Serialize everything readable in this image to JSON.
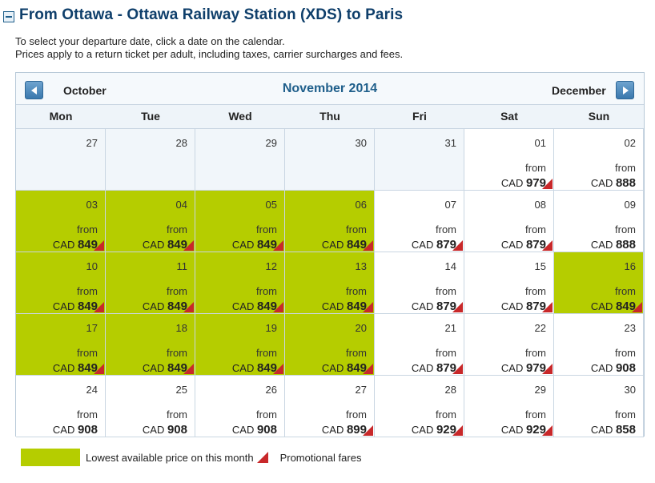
{
  "header": {
    "title": "From Ottawa - Ottawa Railway Station (XDS) to Paris",
    "collapse_icon": "minus-icon"
  },
  "intro": {
    "line1": "To select your departure date, click a date on the calendar.",
    "line2": "Prices apply to a return ticket per adult, including taxes, carrier surcharges and fees."
  },
  "nav": {
    "prev_label": "October",
    "next_label": "December",
    "month_title": "November 2014"
  },
  "weekdays": [
    "Mon",
    "Tue",
    "Wed",
    "Thu",
    "Fri",
    "Sat",
    "Sun"
  ],
  "cells": [
    {
      "day": "27",
      "past": true
    },
    {
      "day": "28",
      "past": true
    },
    {
      "day": "29",
      "past": true
    },
    {
      "day": "30",
      "past": true
    },
    {
      "day": "31",
      "past": true
    },
    {
      "day": "01",
      "from": "from",
      "currency": "CAD",
      "price": "979",
      "low": false,
      "promo": true
    },
    {
      "day": "02",
      "from": "from",
      "currency": "CAD",
      "price": "888",
      "low": false,
      "promo": false
    },
    {
      "day": "03",
      "from": "from",
      "currency": "CAD",
      "price": "849",
      "low": true,
      "promo": true
    },
    {
      "day": "04",
      "from": "from",
      "currency": "CAD",
      "price": "849",
      "low": true,
      "promo": true
    },
    {
      "day": "05",
      "from": "from",
      "currency": "CAD",
      "price": "849",
      "low": true,
      "promo": true
    },
    {
      "day": "06",
      "from": "from",
      "currency": "CAD",
      "price": "849",
      "low": true,
      "promo": true
    },
    {
      "day": "07",
      "from": "from",
      "currency": "CAD",
      "price": "879",
      "low": false,
      "promo": true
    },
    {
      "day": "08",
      "from": "from",
      "currency": "CAD",
      "price": "879",
      "low": false,
      "promo": true
    },
    {
      "day": "09",
      "from": "from",
      "currency": "CAD",
      "price": "888",
      "low": false,
      "promo": false
    },
    {
      "day": "10",
      "from": "from",
      "currency": "CAD",
      "price": "849",
      "low": true,
      "promo": true
    },
    {
      "day": "11",
      "from": "from",
      "currency": "CAD",
      "price": "849",
      "low": true,
      "promo": true
    },
    {
      "day": "12",
      "from": "from",
      "currency": "CAD",
      "price": "849",
      "low": true,
      "promo": true
    },
    {
      "day": "13",
      "from": "from",
      "currency": "CAD",
      "price": "849",
      "low": true,
      "promo": true
    },
    {
      "day": "14",
      "from": "from",
      "currency": "CAD",
      "price": "879",
      "low": false,
      "promo": true
    },
    {
      "day": "15",
      "from": "from",
      "currency": "CAD",
      "price": "879",
      "low": false,
      "promo": true
    },
    {
      "day": "16",
      "from": "from",
      "currency": "CAD",
      "price": "849",
      "low": true,
      "promo": true
    },
    {
      "day": "17",
      "from": "from",
      "currency": "CAD",
      "price": "849",
      "low": true,
      "promo": true
    },
    {
      "day": "18",
      "from": "from",
      "currency": "CAD",
      "price": "849",
      "low": true,
      "promo": true
    },
    {
      "day": "19",
      "from": "from",
      "currency": "CAD",
      "price": "849",
      "low": true,
      "promo": true
    },
    {
      "day": "20",
      "from": "from",
      "currency": "CAD",
      "price": "849",
      "low": true,
      "promo": true
    },
    {
      "day": "21",
      "from": "from",
      "currency": "CAD",
      "price": "879",
      "low": false,
      "promo": true
    },
    {
      "day": "22",
      "from": "from",
      "currency": "CAD",
      "price": "979",
      "low": false,
      "promo": true
    },
    {
      "day": "23",
      "from": "from",
      "currency": "CAD",
      "price": "908",
      "low": false,
      "promo": false
    },
    {
      "day": "24",
      "from": "from",
      "currency": "CAD",
      "price": "908",
      "low": false,
      "promo": false
    },
    {
      "day": "25",
      "from": "from",
      "currency": "CAD",
      "price": "908",
      "low": false,
      "promo": false
    },
    {
      "day": "26",
      "from": "from",
      "currency": "CAD",
      "price": "908",
      "low": false,
      "promo": false
    },
    {
      "day": "27",
      "from": "from",
      "currency": "CAD",
      "price": "899",
      "low": false,
      "promo": true
    },
    {
      "day": "28",
      "from": "from",
      "currency": "CAD",
      "price": "929",
      "low": false,
      "promo": true
    },
    {
      "day": "29",
      "from": "from",
      "currency": "CAD",
      "price": "929",
      "low": false,
      "promo": true
    },
    {
      "day": "30",
      "from": "from",
      "currency": "CAD",
      "price": "858",
      "low": false,
      "promo": false
    }
  ],
  "legend": {
    "lowest_label": "Lowest available price on this month",
    "promo_label": "Promotional fares"
  },
  "colors": {
    "lowest": "#b5cd00",
    "promo": "#c8282a",
    "title": "#0f3f6b",
    "month": "#1f5f8b"
  }
}
